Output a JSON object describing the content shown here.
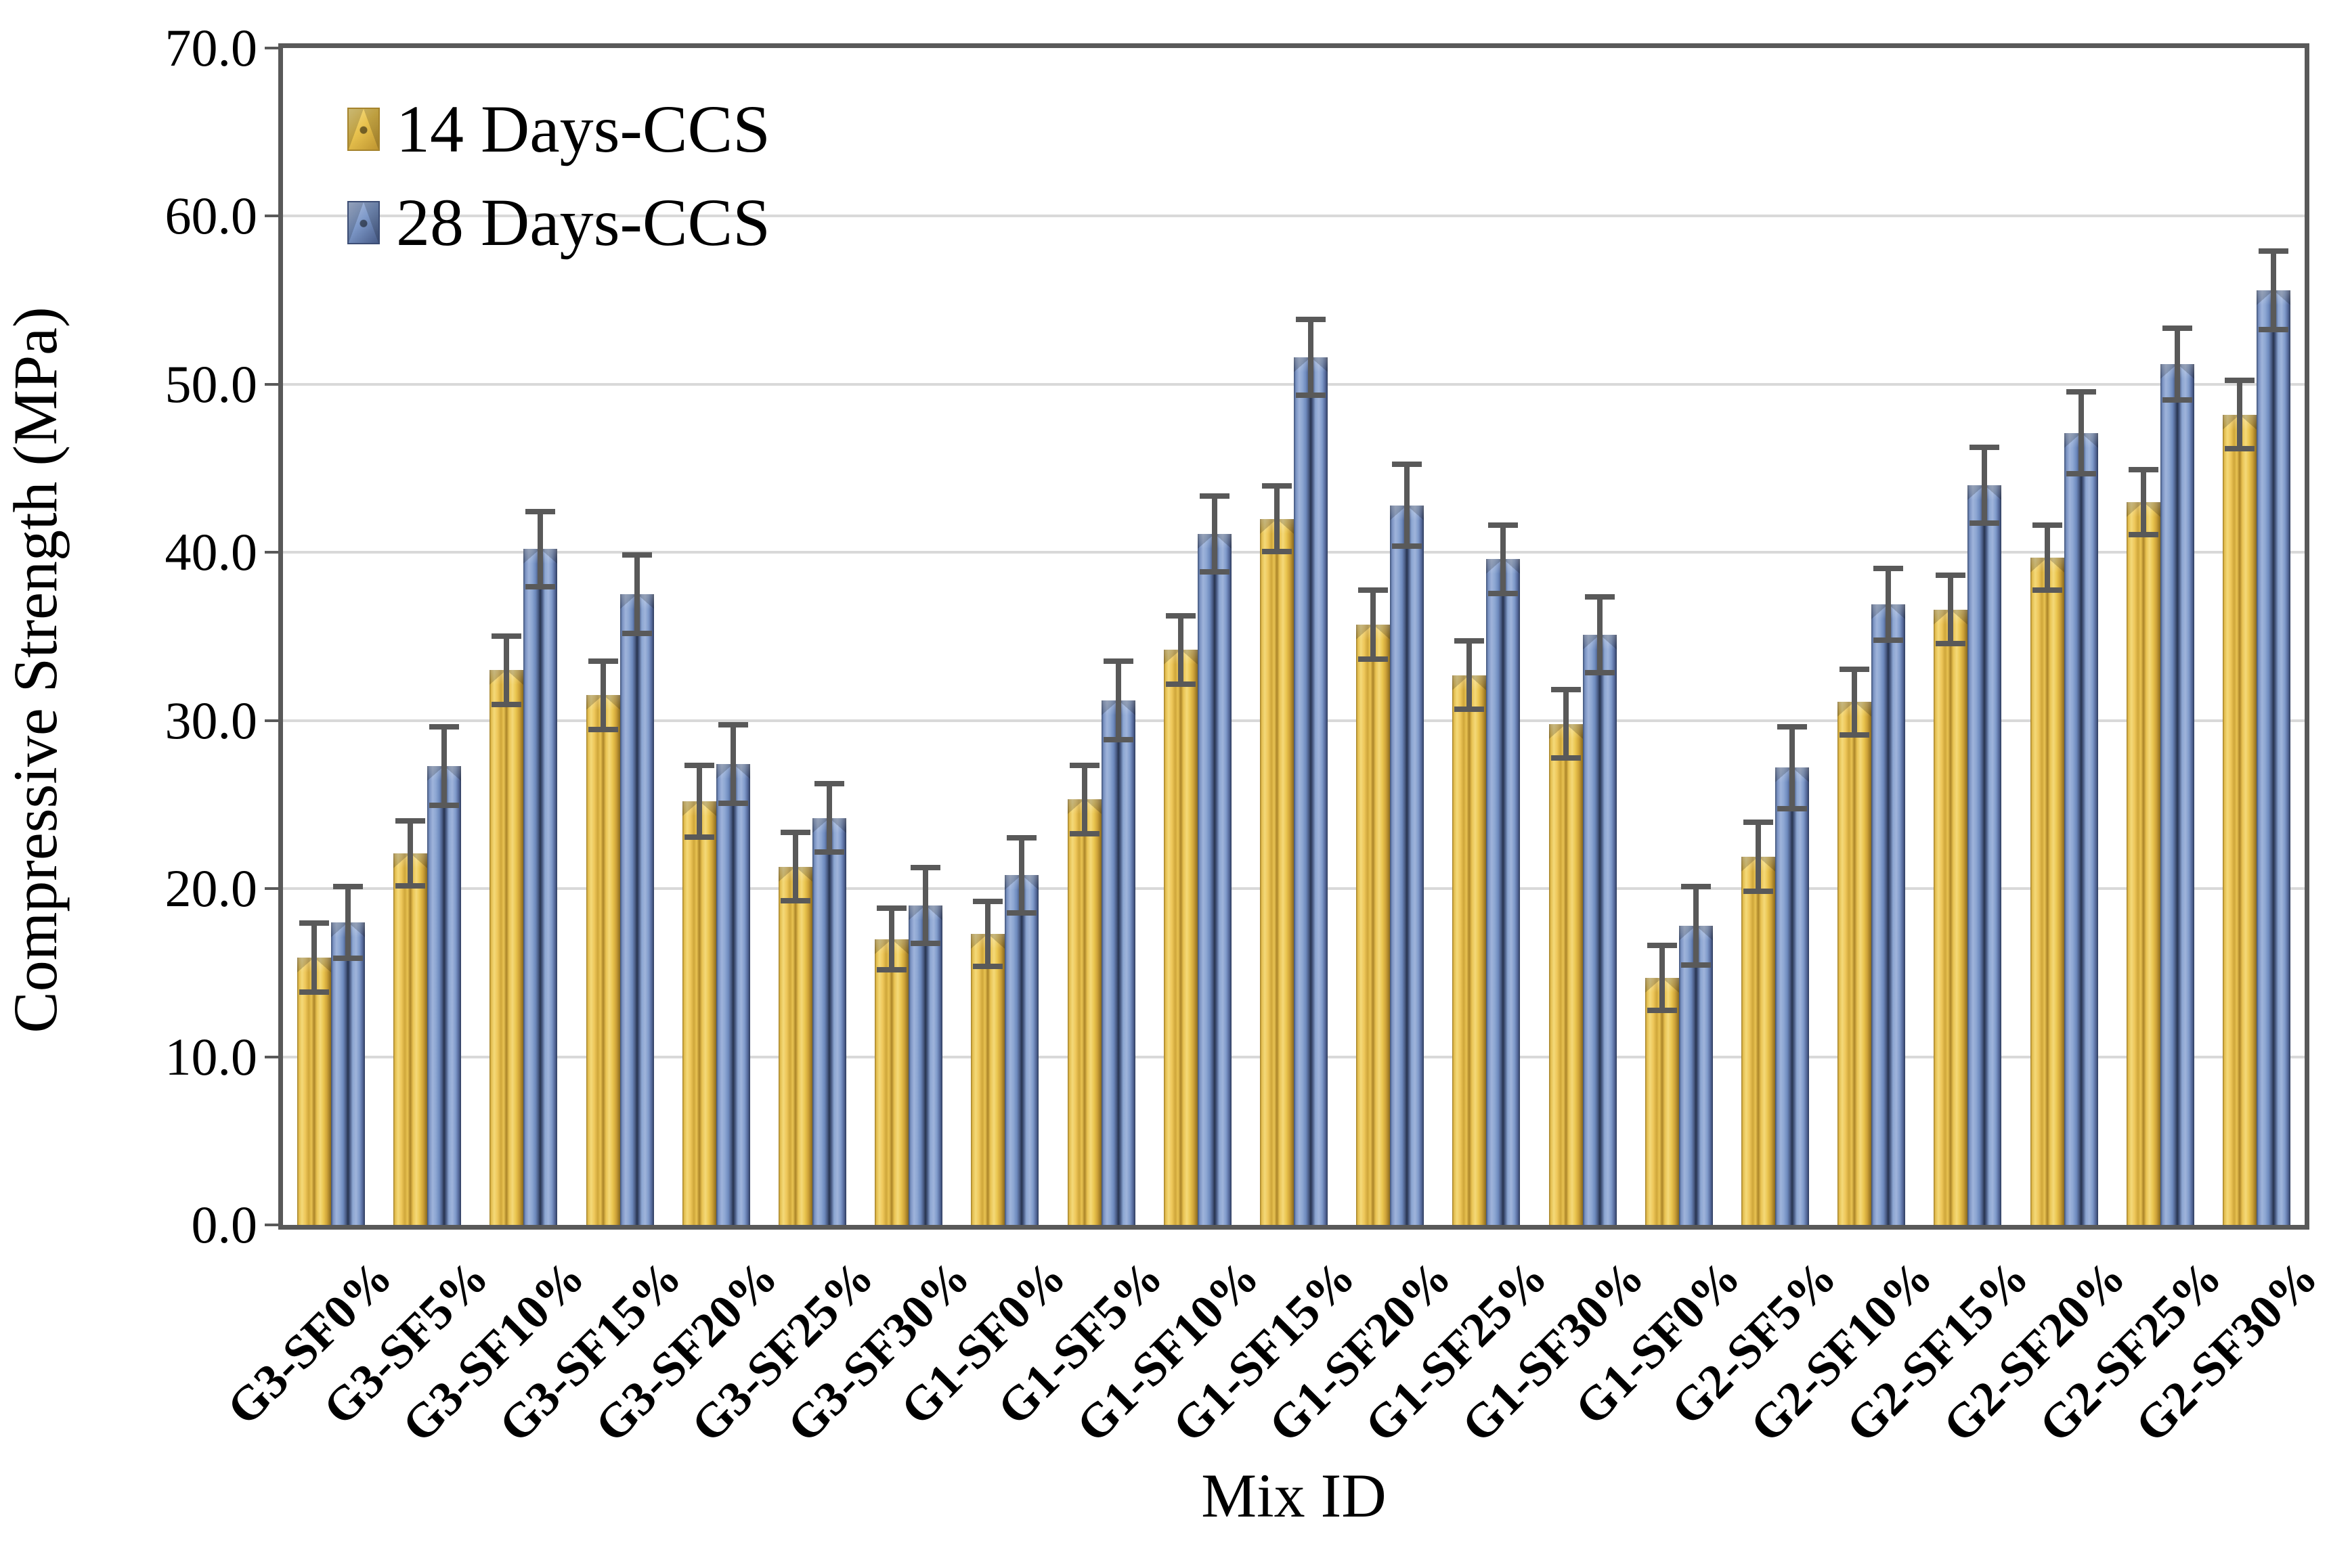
{
  "chart_data": {
    "type": "bar",
    "title": "",
    "xlabel": "Mix ID",
    "ylabel": "Compressive Strength (MPa)",
    "ylim": [
      0,
      70
    ],
    "ytick_step": 10,
    "ytick_labels": [
      "0.0",
      "10.0",
      "20.0",
      "30.0",
      "40.0",
      "50.0",
      "60.0",
      "70.0"
    ],
    "grid": true,
    "legend_position": "inside-top-left",
    "categories": [
      "G3-SF0%",
      "G3-SF5%",
      "G3-SF10%",
      "G3-SF15%",
      "G3-SF20%",
      "G3-SF25%",
      "G3-SF30%",
      "G1-SF0%",
      "G1-SF5%",
      "G1-SF10%",
      "G1-SF15%",
      "G1-SF20%",
      "G1-SF25%",
      "G1-SF30%",
      "G1-SF0%",
      "G2-SF5%",
      "G2-SF10%",
      "G2-SF15%",
      "G2-SF20%",
      "G2-SF25%",
      "G2-SF30%"
    ],
    "series": [
      {
        "name": "14 Days-CCS",
        "color": "#E8C24E",
        "values": [
          15.9,
          22.1,
          33.0,
          31.5,
          25.2,
          21.3,
          17.0,
          17.3,
          25.3,
          34.2,
          42.0,
          35.7,
          32.7,
          29.8,
          14.7,
          21.9,
          31.1,
          36.6,
          39.7,
          43.0,
          48.2
        ],
        "errors": [
          2.2,
          2.1,
          2.2,
          2.2,
          2.3,
          2.2,
          2.0,
          2.1,
          2.2,
          2.2,
          2.1,
          2.2,
          2.2,
          2.2,
          2.1,
          2.2,
          2.1,
          2.2,
          2.1,
          2.1,
          2.2
        ]
      },
      {
        "name": "28 Days-CCS",
        "color": "#7E99C9",
        "values": [
          18.0,
          27.3,
          40.2,
          37.5,
          27.4,
          24.2,
          19.0,
          20.8,
          31.2,
          41.1,
          51.6,
          42.8,
          39.6,
          35.1,
          17.8,
          27.2,
          36.9,
          44.0,
          47.1,
          51.2,
          55.6
        ],
        "errors": [
          2.3,
          2.5,
          2.4,
          2.5,
          2.5,
          2.2,
          2.4,
          2.4,
          2.5,
          2.4,
          2.4,
          2.6,
          2.2,
          2.4,
          2.5,
          2.6,
          2.3,
          2.4,
          2.6,
          2.3,
          2.5
        ]
      }
    ],
    "error_bar_color": "#595959",
    "gridline_color": "#D9D9D9",
    "frame_color": "#595959"
  }
}
